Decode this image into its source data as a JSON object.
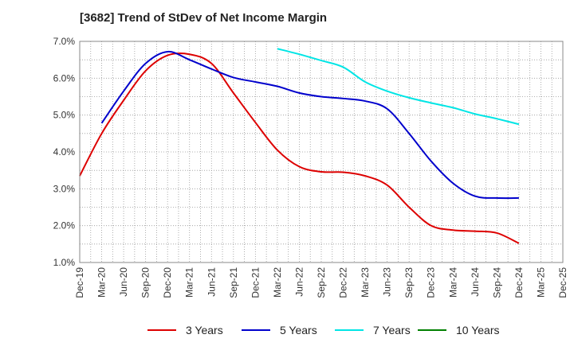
{
  "title": "[3682]  Trend of StDev of Net Income Margin",
  "colors": {
    "3 Years": "#dd0000",
    "5 Years": "#0000cc",
    "7 Years": "#00e5e5",
    "10 Years": "#008000"
  },
  "chart_data": {
    "type": "line",
    "title": "[3682]  Trend of StDev of Net Income Margin",
    "xlabel": "",
    "ylabel": "",
    "ylim": [
      1.0,
      7.0
    ],
    "y_ticks": [
      "1.0%",
      "2.0%",
      "3.0%",
      "4.0%",
      "5.0%",
      "6.0%",
      "7.0%"
    ],
    "x_ticks": [
      "Dec-19",
      "Mar-20",
      "Jun-20",
      "Sep-20",
      "Dec-20",
      "Mar-21",
      "Jun-21",
      "Sep-21",
      "Dec-21",
      "Mar-22",
      "Jun-22",
      "Sep-22",
      "Dec-22",
      "Mar-23",
      "Jun-23",
      "Sep-23",
      "Dec-23",
      "Mar-24",
      "Jun-24",
      "Sep-24",
      "Dec-24",
      "Mar-25",
      "Dec-25"
    ],
    "grid": true,
    "legend_position": "bottom",
    "series": [
      {
        "name": "3 Years",
        "x": [
          "Dec-19",
          "Mar-20",
          "Jun-20",
          "Sep-20",
          "Dec-20",
          "Mar-21",
          "Jun-21",
          "Sep-21",
          "Dec-21",
          "Mar-22",
          "Jun-22",
          "Sep-22",
          "Dec-22",
          "Mar-23",
          "Jun-23",
          "Sep-23",
          "Dec-23",
          "Mar-24",
          "Jun-24",
          "Sep-24",
          "Dec-24"
        ],
        "values": [
          3.35,
          4.5,
          5.4,
          6.2,
          6.62,
          6.65,
          6.4,
          5.6,
          4.8,
          4.05,
          3.6,
          3.46,
          3.45,
          3.35,
          3.1,
          2.5,
          2.0,
          1.88,
          1.85,
          1.8,
          1.52
        ]
      },
      {
        "name": "5 Years",
        "x": [
          "Mar-20",
          "Jun-20",
          "Sep-20",
          "Dec-20",
          "Mar-21",
          "Jun-21",
          "Sep-21",
          "Dec-21",
          "Mar-22",
          "Jun-22",
          "Sep-22",
          "Dec-22",
          "Mar-23",
          "Jun-23",
          "Sep-23",
          "Dec-23",
          "Mar-24",
          "Jun-24",
          "Sep-24",
          "Dec-24"
        ],
        "values": [
          4.78,
          5.65,
          6.4,
          6.72,
          6.5,
          6.25,
          6.02,
          5.9,
          5.78,
          5.6,
          5.5,
          5.45,
          5.38,
          5.17,
          4.5,
          3.75,
          3.15,
          2.8,
          2.75,
          2.75
        ]
      },
      {
        "name": "7 Years",
        "x": [
          "Mar-22",
          "Jun-22",
          "Sep-22",
          "Dec-22",
          "Mar-23",
          "Jun-23",
          "Sep-23",
          "Dec-23",
          "Mar-24",
          "Jun-24",
          "Sep-24",
          "Dec-24"
        ],
        "values": [
          6.8,
          6.65,
          6.48,
          6.3,
          5.9,
          5.65,
          5.47,
          5.33,
          5.2,
          5.03,
          4.9,
          4.75
        ]
      },
      {
        "name": "10 Years",
        "x": [],
        "values": []
      }
    ]
  }
}
